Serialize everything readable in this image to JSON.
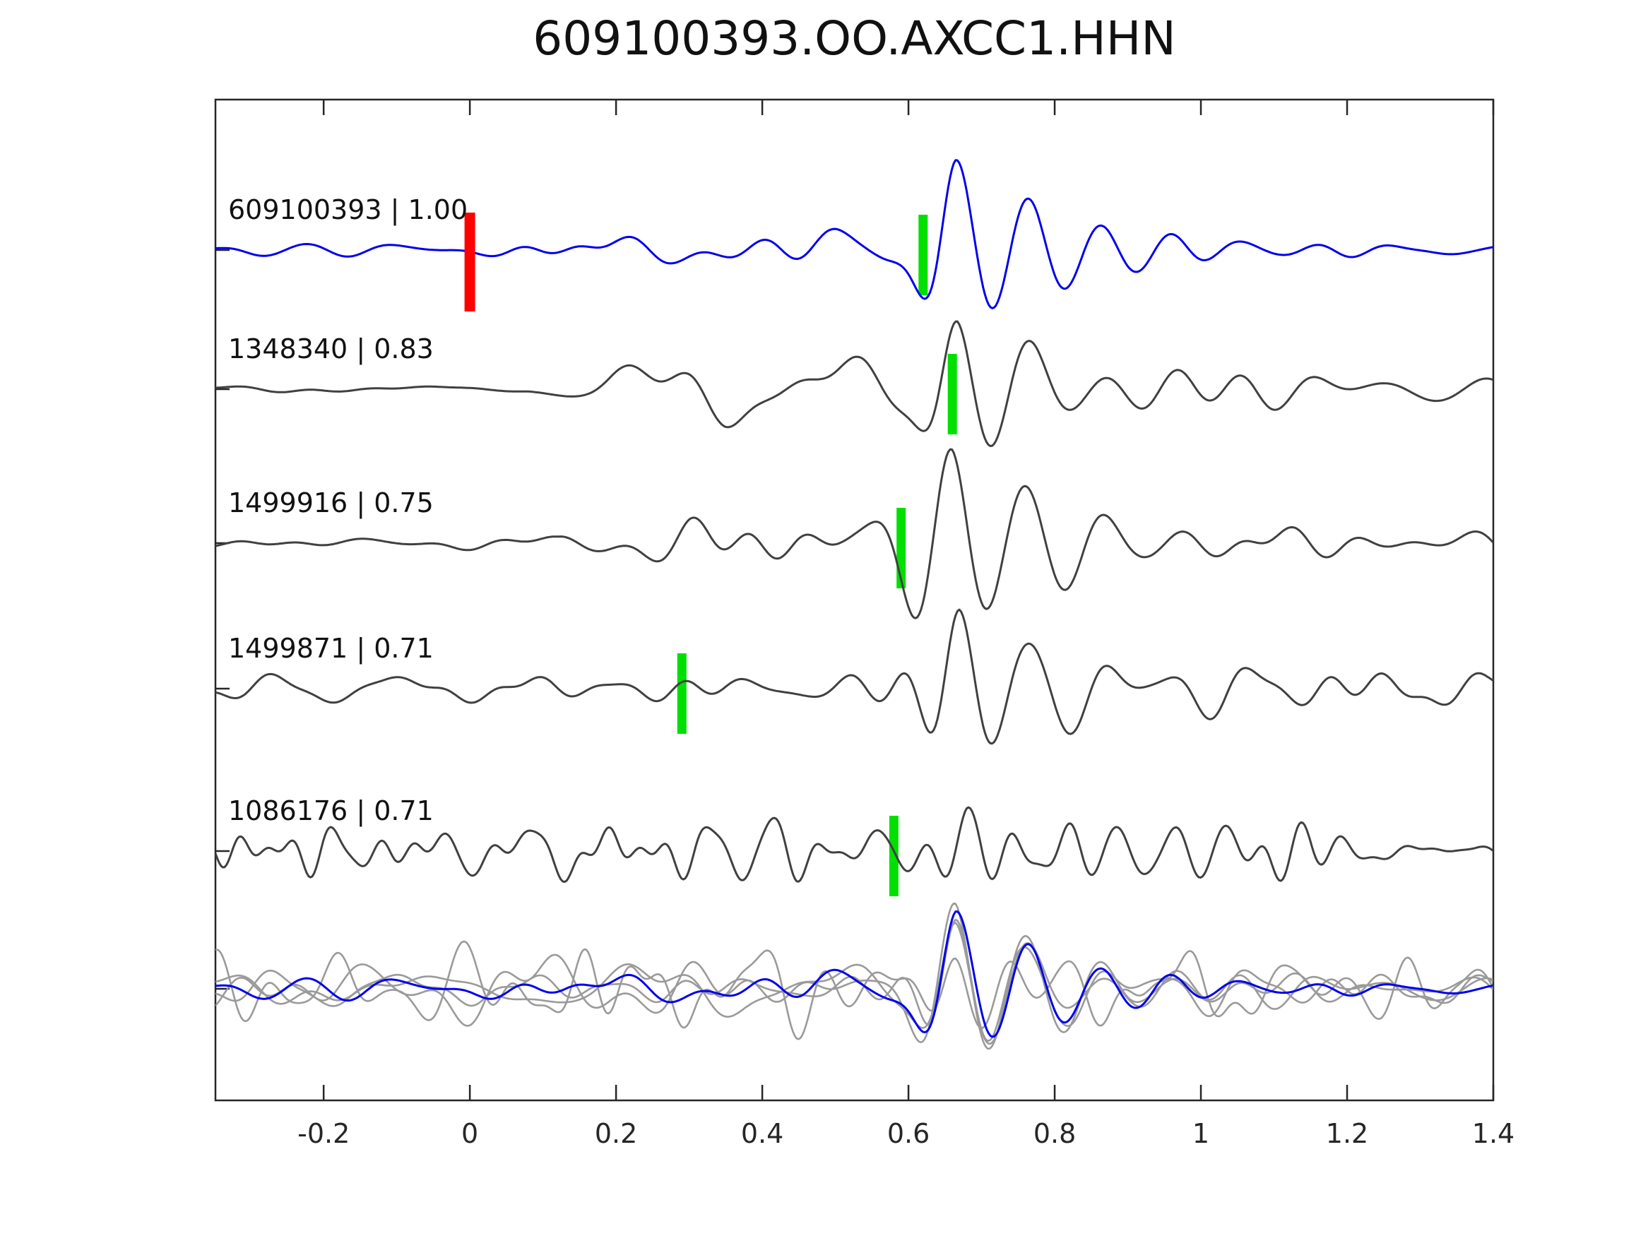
{
  "chart_data": {
    "type": "line",
    "title": "609100393.OO.AXCC1.HHN",
    "xlabel": "",
    "ylabel": "",
    "grid": false,
    "legend": "none",
    "xlim": [
      -0.348,
      1.4
    ],
    "xticks": [
      -0.2,
      0,
      0.2,
      0.4,
      0.6,
      0.8,
      1,
      1.2,
      1.4
    ],
    "xtick_labels": [
      "-0.2",
      "0",
      "0.2",
      "0.4",
      "0.6",
      "0.8",
      "1",
      "1.2",
      "1.4"
    ],
    "colors": {
      "template_trace": "#0000ee",
      "detection_trace": "#404040",
      "overlay_trace": "#9a9a9a",
      "pick_marker": "#00e000",
      "onset_marker": "#ff0000",
      "axis": "#262626"
    },
    "traces": [
      {
        "id": "609100393",
        "similarity": "1.00",
        "label_text": "609100393 | 1.00",
        "color": "#0000ee",
        "pick": {
          "t": 0.62,
          "color": "#00e000"
        },
        "onset": {
          "t": 0.0,
          "color": "#ff0000"
        },
        "synth": {
          "seed": 11,
          "ncomp": 26,
          "fmin": 3,
          "fmax": 15,
          "amp": [
            [
              -0.35,
              12
            ],
            [
              0,
              14
            ],
            [
              0.15,
              26
            ],
            [
              0.3,
              32
            ],
            [
              0.5,
              38
            ],
            [
              0.62,
              30
            ],
            [
              0.75,
              24
            ],
            [
              1.0,
              26
            ],
            [
              1.4,
              22
            ]
          ],
          "packet": {
            "t0": 0.665,
            "A": 125,
            "T": 0.1,
            "rise": 0.05,
            "decay": 0.17
          }
        }
      },
      {
        "id": "1348340",
        "similarity": "0.83",
        "label_text": "1348340 | 0.83",
        "color": "#404040",
        "pick": {
          "t": 0.66,
          "color": "#00e000"
        },
        "synth": {
          "seed": 22,
          "ncomp": 26,
          "fmin": 3,
          "fmax": 15,
          "amp": [
            [
              -0.35,
              7
            ],
            [
              0.08,
              9
            ],
            [
              0.2,
              40
            ],
            [
              0.35,
              60
            ],
            [
              0.55,
              55
            ],
            [
              0.7,
              45
            ],
            [
              0.9,
              42
            ],
            [
              1.4,
              38
            ]
          ],
          "packet": {
            "t0": 0.667,
            "A": 105,
            "T": 0.1,
            "rise": 0.05,
            "decay": 0.16
          }
        }
      },
      {
        "id": "1499916",
        "similarity": "0.75",
        "label_text": "1499916 | 0.75",
        "color": "#404040",
        "pick": {
          "t": 0.59,
          "color": "#00e000"
        },
        "synth": {
          "seed": 33,
          "ncomp": 26,
          "fmin": 3,
          "fmax": 15,
          "amp": [
            [
              -0.35,
              7
            ],
            [
              0.12,
              9
            ],
            [
              0.3,
              45
            ],
            [
              0.5,
              60
            ],
            [
              0.65,
              50
            ],
            [
              0.9,
              48
            ],
            [
              1.4,
              42
            ]
          ],
          "packet": {
            "t0": 0.66,
            "A": 112,
            "T": 0.105,
            "rise": 0.08,
            "decay": 0.17
          }
        }
      },
      {
        "id": "1499871",
        "similarity": "0.71",
        "label_text": "1499871 | 0.71",
        "color": "#404040",
        "pick": {
          "t": 0.29,
          "color": "#00e000"
        },
        "synth": {
          "seed": 44,
          "ncomp": 28,
          "fmin": 4,
          "fmax": 16,
          "amp": [
            [
              -0.35,
              30
            ],
            [
              0.05,
              34
            ],
            [
              0.3,
              40
            ],
            [
              0.55,
              46
            ],
            [
              0.8,
              42
            ],
            [
              1.4,
              40
            ]
          ],
          "packet": {
            "t0": 0.67,
            "A": 108,
            "T": 0.1,
            "rise": 0.05,
            "decay": 0.16
          }
        }
      },
      {
        "id": "1086176",
        "similarity": "0.71",
        "label_text": "1086176 | 0.71",
        "color": "#404040",
        "pick": {
          "t": 0.58,
          "color": "#00e000"
        },
        "synth": {
          "seed": 55,
          "ncomp": 45,
          "fmin": 6,
          "fmax": 26,
          "amp": [
            [
              -0.35,
              85
            ],
            [
              0.3,
              90
            ],
            [
              0.65,
              95
            ],
            [
              1.0,
              88
            ],
            [
              1.4,
              85
            ]
          ],
          "packet": {
            "t0": 0.68,
            "A": 55,
            "T": 0.07,
            "rise": 0.05,
            "decay": 0.12
          }
        }
      }
    ],
    "overlay": {
      "description": "all traces aligned and superimposed",
      "members": [
        {
          "color": "#9a9a9a",
          "synth": {
            "seed": 22,
            "ncomp": 26,
            "fmin": 3,
            "fmax": 15,
            "amp": [
              [
                -0.35,
                35
              ],
              [
                0.3,
                45
              ],
              [
                0.6,
                40
              ],
              [
                1.4,
                38
              ]
            ],
            "packet": {
              "t0": 0.665,
              "A": 100,
              "T": 0.1,
              "rise": 0.05,
              "decay": 0.16
            }
          }
        },
        {
          "color": "#9a9a9a",
          "synth": {
            "seed": 33,
            "ncomp": 26,
            "fmin": 3,
            "fmax": 15,
            "amp": [
              [
                -0.35,
                42
              ],
              [
                0.3,
                48
              ],
              [
                0.6,
                42
              ],
              [
                1.4,
                40
              ]
            ],
            "packet": {
              "t0": 0.665,
              "A": 108,
              "T": 0.1,
              "rise": 0.06,
              "decay": 0.16
            }
          }
        },
        {
          "color": "#9a9a9a",
          "synth": {
            "seed": 44,
            "ncomp": 28,
            "fmin": 4,
            "fmax": 16,
            "amp": [
              [
                -0.35,
                38
              ],
              [
                0.3,
                42
              ],
              [
                0.6,
                40
              ],
              [
                1.4,
                36
              ]
            ],
            "packet": {
              "t0": 0.665,
              "A": 95,
              "T": 0.1,
              "rise": 0.05,
              "decay": 0.15
            }
          }
        },
        {
          "color": "#9a9a9a",
          "synth": {
            "seed": 77,
            "ncomp": 40,
            "fmin": 5,
            "fmax": 22,
            "amp": [
              [
                -0.35,
                80
              ],
              [
                0.2,
                95
              ],
              [
                0.6,
                85
              ],
              [
                1.4,
                78
              ]
            ],
            "packet": {
              "t0": 0.665,
              "A": 60,
              "T": 0.08,
              "rise": 0.05,
              "decay": 0.13
            }
          }
        },
        {
          "color": "#0000ee",
          "synth": {
            "seed": 11,
            "ncomp": 26,
            "fmin": 3,
            "fmax": 15,
            "amp": [
              [
                -0.35,
                20
              ],
              [
                0.2,
                30
              ],
              [
                0.5,
                34
              ],
              [
                0.7,
                28
              ],
              [
                1.4,
                24
              ]
            ],
            "packet": {
              "t0": 0.665,
              "A": 107,
              "T": 0.1,
              "rise": 0.05,
              "decay": 0.17
            }
          }
        }
      ]
    }
  }
}
